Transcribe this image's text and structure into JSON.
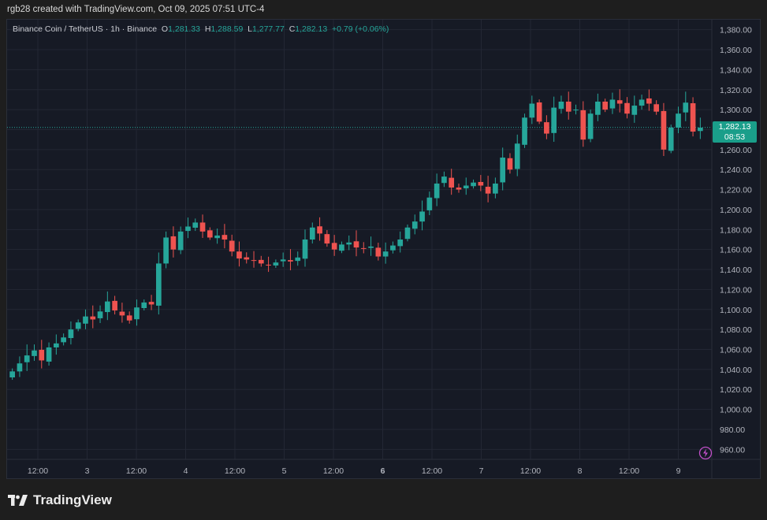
{
  "caption": "rgb28 created with TradingView.com, Oct 09, 2025 07:51 UTC-4",
  "legend": {
    "symbol": "Binance Coin / TetherUS · 1h · Binance",
    "o_label": "O",
    "o": "1,281.33",
    "h_label": "H",
    "h": "1,288.59",
    "l_label": "L",
    "l": "1,277.77",
    "c_label": "C",
    "c": "1,282.13",
    "change": "+0.79 (+0.06%)"
  },
  "price_tag": {
    "price": "1,282.13",
    "countdown": "08:53"
  },
  "brand": "TradingView",
  "colors": {
    "up": "#26a69a",
    "down": "#ef5350",
    "background": "#161a25",
    "grid": "#232734"
  },
  "chart_data": {
    "type": "candlestick",
    "y_ticks": [
      "1,380.00",
      "1,360.00",
      "1,340.00",
      "1,320.00",
      "1,300.00",
      "1,280.00",
      "1,260.00",
      "1,240.00",
      "1,220.00",
      "1,200.00",
      "1,180.00",
      "1,160.00",
      "1,140.00",
      "1,120.00",
      "1,100.00",
      "1,080.00",
      "1,060.00",
      "1,040.00",
      "1,020.00",
      "1,000.00",
      "980.00",
      "960.00"
    ],
    "x_ticks": [
      "12:00",
      "3",
      "12:00",
      "4",
      "12:00",
      "5",
      "12:00",
      "6",
      "12:00",
      "7",
      "12:00",
      "8",
      "12:00",
      "9"
    ],
    "ylim": [
      950,
      1390
    ],
    "last_price": 1282.13,
    "closes": [
      1038,
      1046,
      1054,
      1059,
      1049,
      1062,
      1066,
      1072,
      1080,
      1087,
      1093,
      1090,
      1098,
      1108,
      1099,
      1094,
      1089,
      1102,
      1107,
      1105,
      1146,
      1172,
      1160,
      1178,
      1183,
      1187,
      1178,
      1172,
      1174,
      1170,
      1158,
      1151,
      1150,
      1149,
      1146,
      1144,
      1147,
      1150,
      1148,
      1152,
      1170,
      1182,
      1176,
      1166,
      1160,
      1165,
      1167,
      1162,
      1161,
      1163,
      1153,
      1158,
      1164,
      1170,
      1182,
      1188,
      1198,
      1212,
      1226,
      1233,
      1222,
      1220,
      1224,
      1227,
      1224,
      1216,
      1226,
      1252,
      1240,
      1266,
      1292,
      1306,
      1288,
      1276,
      1302,
      1308,
      1298,
      1300,
      1270,
      1296,
      1308,
      1300,
      1310,
      1306,
      1296,
      1304,
      1310,
      1306,
      1298,
      1260,
      1282,
      1296,
      1307,
      1278,
      1282
    ]
  }
}
